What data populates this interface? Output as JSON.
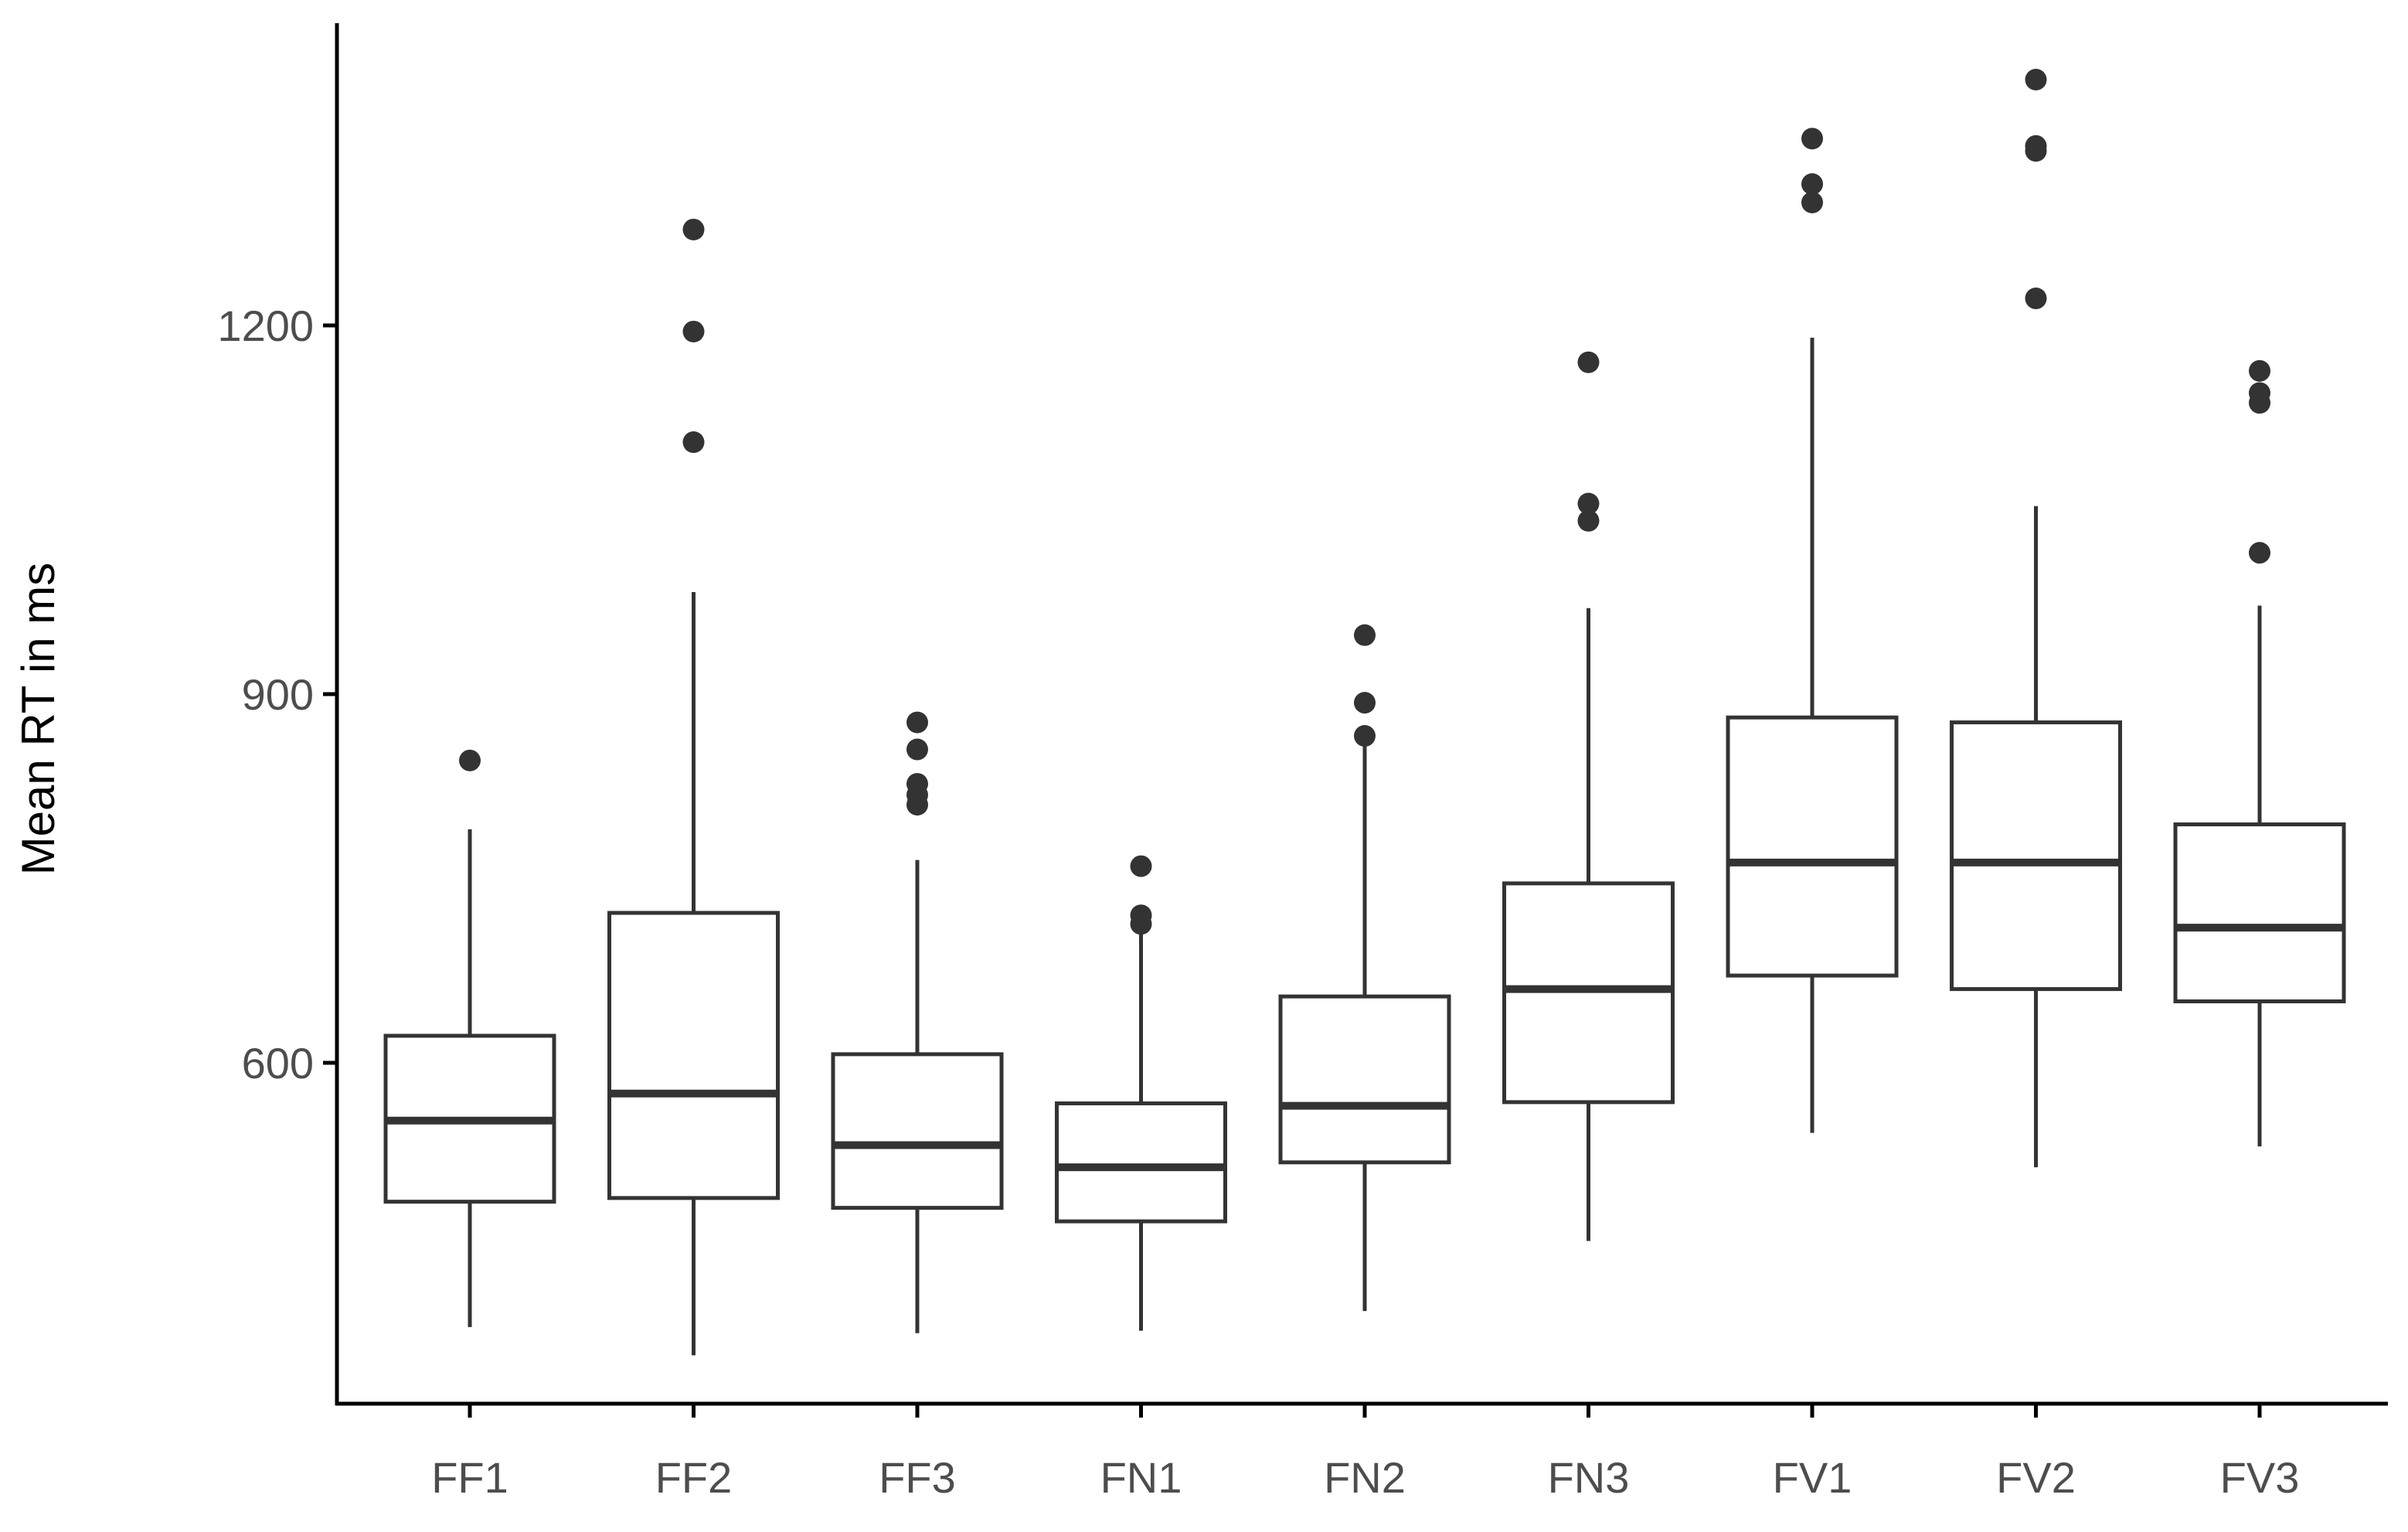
{
  "chart_data": {
    "type": "boxplot",
    "title": "",
    "xlabel": "",
    "ylabel": "Mean RT in ms",
    "ylim": [
      320,
      1450
    ],
    "yticks": [
      600,
      900,
      1200
    ],
    "grid": false,
    "legend": "none",
    "colors": {
      "box_stroke": "#333333",
      "box_fill": "#ffffff",
      "outlier": "#333333",
      "axis": "#000000",
      "tick_text": "#4d4d4d"
    },
    "categories": [
      "FF1",
      "FF2",
      "FF3",
      "FN1",
      "FN2",
      "FN3",
      "FV1",
      "FV2",
      "FV3"
    ],
    "boxes": [
      {
        "category": "FF1",
        "whisker_low": 385,
        "q1": 487,
        "median": 553,
        "q3": 622,
        "whisker_high": 790,
        "outliers": [
          846
        ]
      },
      {
        "category": "FF2",
        "whisker_low": 362,
        "q1": 490,
        "median": 575,
        "q3": 722,
        "whisker_high": 983,
        "outliers": [
          1105,
          1195,
          1278
        ]
      },
      {
        "category": "FF3",
        "whisker_low": 380,
        "q1": 482,
        "median": 533,
        "q3": 607,
        "whisker_high": 765,
        "outliers": [
          810,
          818,
          827,
          855,
          877
        ]
      },
      {
        "category": "FN1",
        "whisker_low": 382,
        "q1": 471,
        "median": 515,
        "q3": 567,
        "whisker_high": 705,
        "outliers": [
          713,
          720,
          760
        ]
      },
      {
        "category": "FN2",
        "whisker_low": 398,
        "q1": 519,
        "median": 565,
        "q3": 654,
        "whisker_high": 862,
        "outliers": [
          866,
          893,
          948
        ]
      },
      {
        "category": "FN3",
        "whisker_low": 455,
        "q1": 568,
        "median": 660,
        "q3": 746,
        "whisker_high": 970,
        "outliers": [
          1041,
          1055,
          1170
        ]
      },
      {
        "category": "FV1",
        "whisker_low": 543,
        "q1": 671,
        "median": 763,
        "q3": 881,
        "whisker_high": 1190,
        "outliers": [
          1300,
          1315,
          1352
        ]
      },
      {
        "category": "FV2",
        "whisker_low": 515,
        "q1": 660,
        "median": 763,
        "q3": 877,
        "whisker_high": 1053,
        "outliers": [
          1222,
          1342,
          1346,
          1400
        ]
      },
      {
        "category": "FV3",
        "whisker_low": 532,
        "q1": 650,
        "median": 710,
        "q3": 794,
        "whisker_high": 972,
        "outliers": [
          1015,
          1137,
          1145,
          1163
        ]
      }
    ]
  }
}
